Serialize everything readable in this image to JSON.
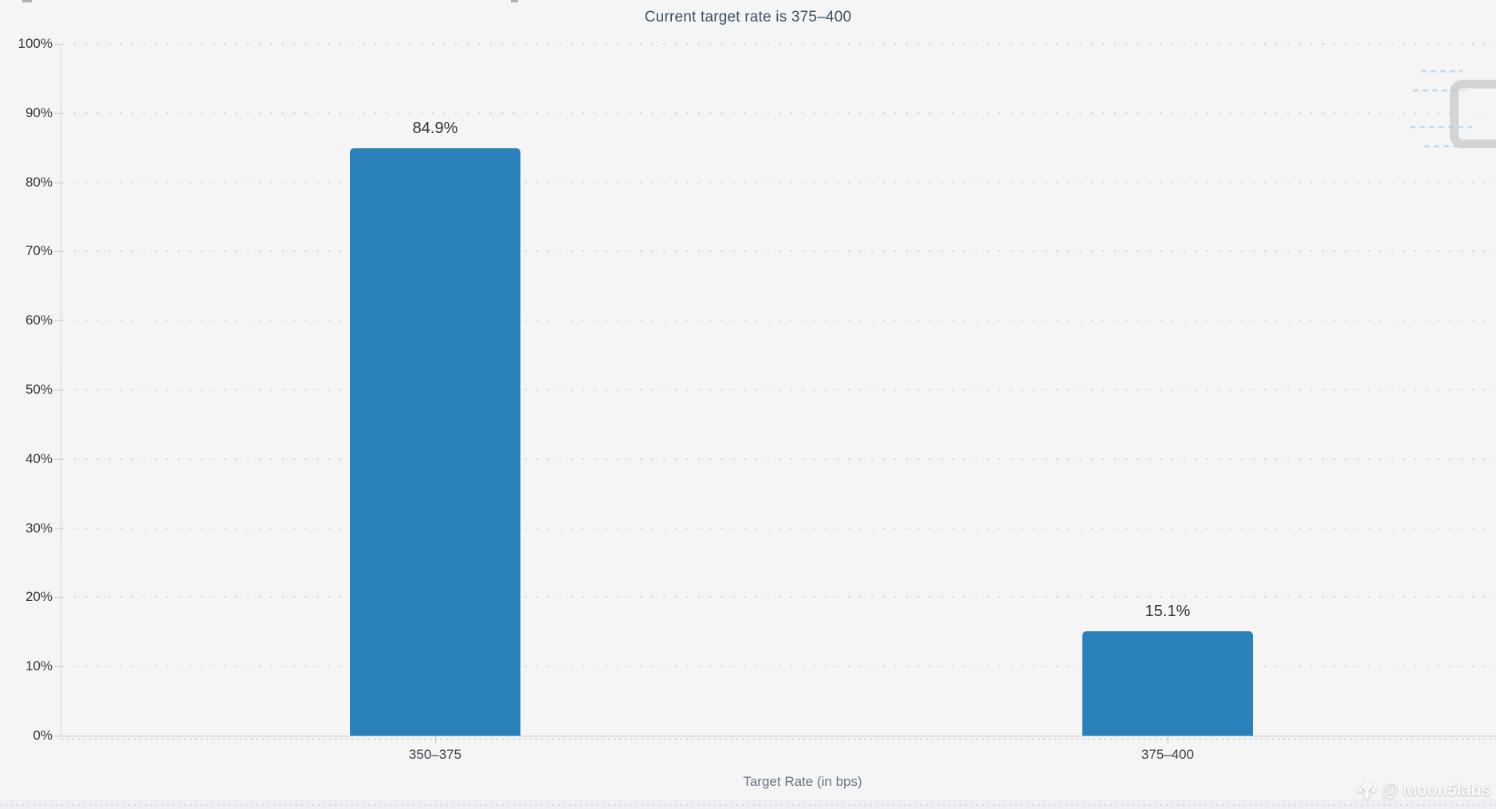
{
  "chart": {
    "title": "Current target rate is 375–400",
    "xlabel": "Target Rate (in bps)",
    "watermark_text": "@ Moon5labs"
  },
  "chart_data": {
    "type": "bar",
    "categories": [
      "350–375",
      "375–400"
    ],
    "values": [
      84.9,
      15.1
    ],
    "value_labels": [
      "84.9%",
      "15.1%"
    ],
    "title": "Current target rate is 375–400",
    "xlabel": "Target Rate (in bps)",
    "ylabel": "",
    "ylim": [
      0,
      100
    ],
    "ytick_step": 10,
    "ytick_suffix": "%",
    "grid": "dotted-horizontal",
    "legend": "none",
    "bar_color": "#2b81ba",
    "colors": {
      "background": "#f5f5f6",
      "title_text": "#3d4f60",
      "axis_line": "#c9cbce",
      "gridline": "#d9d9dd",
      "tick_text": "#33373c",
      "value_text": "#2d3238",
      "xlabel_text": "#6a7380"
    }
  }
}
